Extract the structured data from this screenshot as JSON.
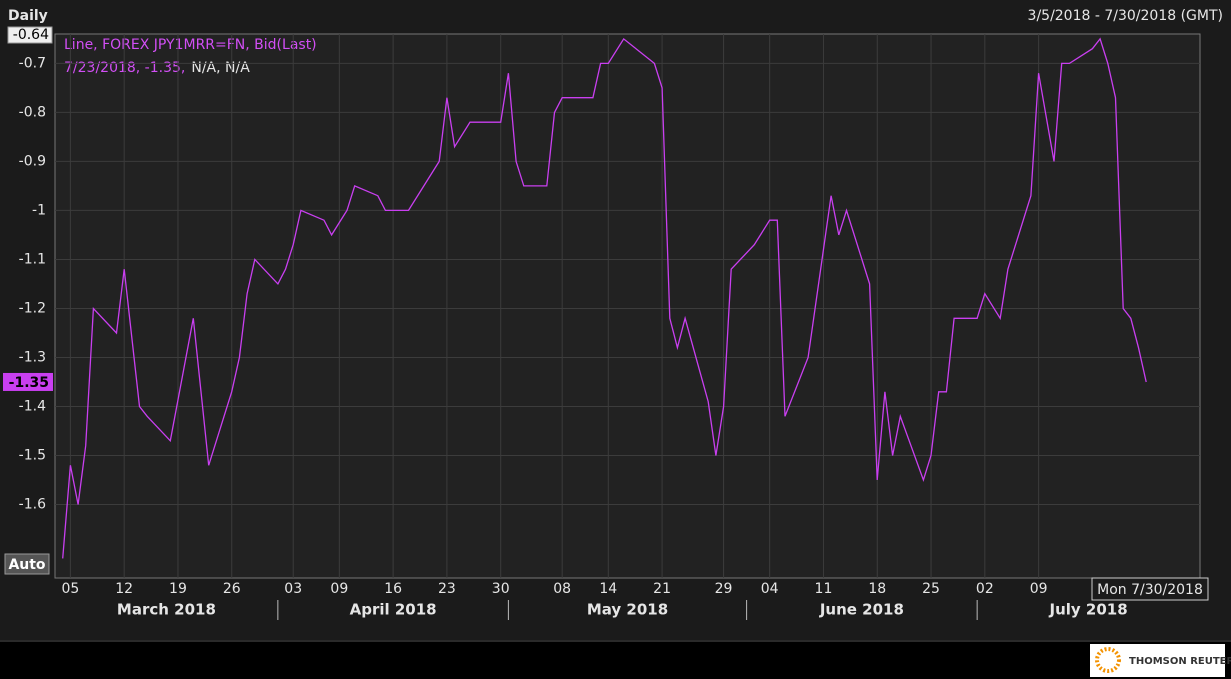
{
  "chart_data": {
    "type": "line",
    "title": "Daily",
    "subtitle": "3/5/2018 - 7/30/2018 (GMT)",
    "legend_title": "Line, FOREX JPY1MRR=FN, Bid(Last)",
    "cursor_text": [
      "7/23/2018, -1.35,",
      "N/A, N/A"
    ],
    "cursor_date_label": "Mon 7/30/2018",
    "last_value": -1.35,
    "scale_button": "Auto",
    "brand": "THOMSON REUTERS",
    "grid": true,
    "x": [
      "2018-03-04",
      "2018-03-05",
      "2018-03-06",
      "2018-03-07",
      "2018-03-08",
      "2018-03-11",
      "2018-03-12",
      "2018-03-14",
      "2018-03-15",
      "2018-03-18",
      "2018-03-21",
      "2018-03-23",
      "2018-03-26",
      "2018-03-27",
      "2018-03-28",
      "2018-03-29",
      "2018-04-01",
      "2018-04-02",
      "2018-04-03",
      "2018-04-04",
      "2018-04-07",
      "2018-04-08",
      "2018-04-10",
      "2018-04-11",
      "2018-04-14",
      "2018-04-15",
      "2018-04-18",
      "2018-04-22",
      "2018-04-23",
      "2018-04-24",
      "2018-04-26",
      "2018-04-30",
      "2018-05-01",
      "2018-05-02",
      "2018-05-03",
      "2018-05-06",
      "2018-05-07",
      "2018-05-08",
      "2018-05-12",
      "2018-05-13",
      "2018-05-14",
      "2018-05-16",
      "2018-05-20",
      "2018-05-21",
      "2018-05-22",
      "2018-05-23",
      "2018-05-24",
      "2018-05-27",
      "2018-05-28",
      "2018-05-29",
      "2018-05-30",
      "2018-06-02",
      "2018-06-04",
      "2018-06-05",
      "2018-06-06",
      "2018-06-09",
      "2018-06-12",
      "2018-06-13",
      "2018-06-14",
      "2018-06-17",
      "2018-06-18",
      "2018-06-19",
      "2018-06-20",
      "2018-06-21",
      "2018-06-24",
      "2018-06-25",
      "2018-06-26",
      "2018-06-27",
      "2018-06-28",
      "2018-07-01",
      "2018-07-02",
      "2018-07-04",
      "2018-07-05",
      "2018-07-08",
      "2018-07-09",
      "2018-07-11",
      "2018-07-12",
      "2018-07-13",
      "2018-07-16",
      "2018-07-17",
      "2018-07-18",
      "2018-07-19",
      "2018-07-20",
      "2018-07-21",
      "2018-07-22",
      "2018-07-23"
    ],
    "series": [
      {
        "name": "JPY1MRR=FN",
        "color": "#c93ff0",
        "values": [
          -1.71,
          -1.52,
          -1.6,
          -1.48,
          -1.2,
          -1.25,
          -1.12,
          -1.4,
          -1.42,
          -1.47,
          -1.22,
          -1.52,
          -1.37,
          -1.3,
          -1.17,
          -1.1,
          -1.15,
          -1.12,
          -1.07,
          -1.0,
          -1.02,
          -1.05,
          -1.0,
          -0.95,
          -0.97,
          -1.0,
          -1.0,
          -0.9,
          -0.77,
          -0.87,
          -0.82,
          -0.82,
          -0.72,
          -0.9,
          -0.95,
          -0.95,
          -0.8,
          -0.77,
          -0.77,
          -0.7,
          -0.7,
          -0.65,
          -0.7,
          -0.75,
          -1.22,
          -1.28,
          -1.22,
          -1.39,
          -1.5,
          -1.4,
          -1.12,
          -1.07,
          -1.02,
          -1.02,
          -1.42,
          -1.3,
          -0.97,
          -1.05,
          -1.0,
          -1.15,
          -1.55,
          -1.37,
          -1.5,
          -1.42,
          -1.55,
          -1.5,
          -1.37,
          -1.37,
          -1.22,
          -1.22,
          -1.17,
          -1.22,
          -1.12,
          -0.97,
          -0.72,
          -0.9,
          -0.7,
          -0.7,
          -0.67,
          -0.65,
          -0.7,
          -0.77,
          -1.2,
          -1.22,
          -1.28,
          -1.35
        ]
      }
    ],
    "xlim": [
      "2018-03-03",
      "2018-07-30"
    ],
    "xticks": [
      {
        "value": "2018-03-05",
        "label": "05"
      },
      {
        "value": "2018-03-12",
        "label": "12"
      },
      {
        "value": "2018-03-19",
        "label": "19"
      },
      {
        "value": "2018-03-26",
        "label": "26"
      },
      {
        "value": "2018-04-03",
        "label": "03"
      },
      {
        "value": "2018-04-09",
        "label": "09"
      },
      {
        "value": "2018-04-16",
        "label": "16"
      },
      {
        "value": "2018-04-23",
        "label": "23"
      },
      {
        "value": "2018-04-30",
        "label": "30"
      },
      {
        "value": "2018-05-08",
        "label": "08"
      },
      {
        "value": "2018-05-14",
        "label": "14"
      },
      {
        "value": "2018-05-21",
        "label": "21"
      },
      {
        "value": "2018-05-29",
        "label": "29"
      },
      {
        "value": "2018-06-04",
        "label": "04"
      },
      {
        "value": "2018-06-11",
        "label": "11"
      },
      {
        "value": "2018-06-18",
        "label": "18"
      },
      {
        "value": "2018-06-25",
        "label": "25"
      },
      {
        "value": "2018-07-02",
        "label": "02"
      },
      {
        "value": "2018-07-09",
        "label": "09"
      }
    ],
    "months": [
      {
        "value": "2018-03",
        "label": "March 2018"
      },
      {
        "value": "2018-04",
        "label": "April 2018"
      },
      {
        "value": "2018-05",
        "label": "May 2018"
      },
      {
        "value": "2018-06",
        "label": "June 2018"
      },
      {
        "value": "2018-07",
        "label": "July 2018"
      }
    ],
    "ylim": [
      -1.75,
      -0.64
    ],
    "yticks": [
      -0.64,
      -0.7,
      -0.8,
      -0.9,
      -1,
      -1.1,
      -1.2,
      -1.3,
      -1.4,
      -1.5,
      -1.6
    ]
  }
}
